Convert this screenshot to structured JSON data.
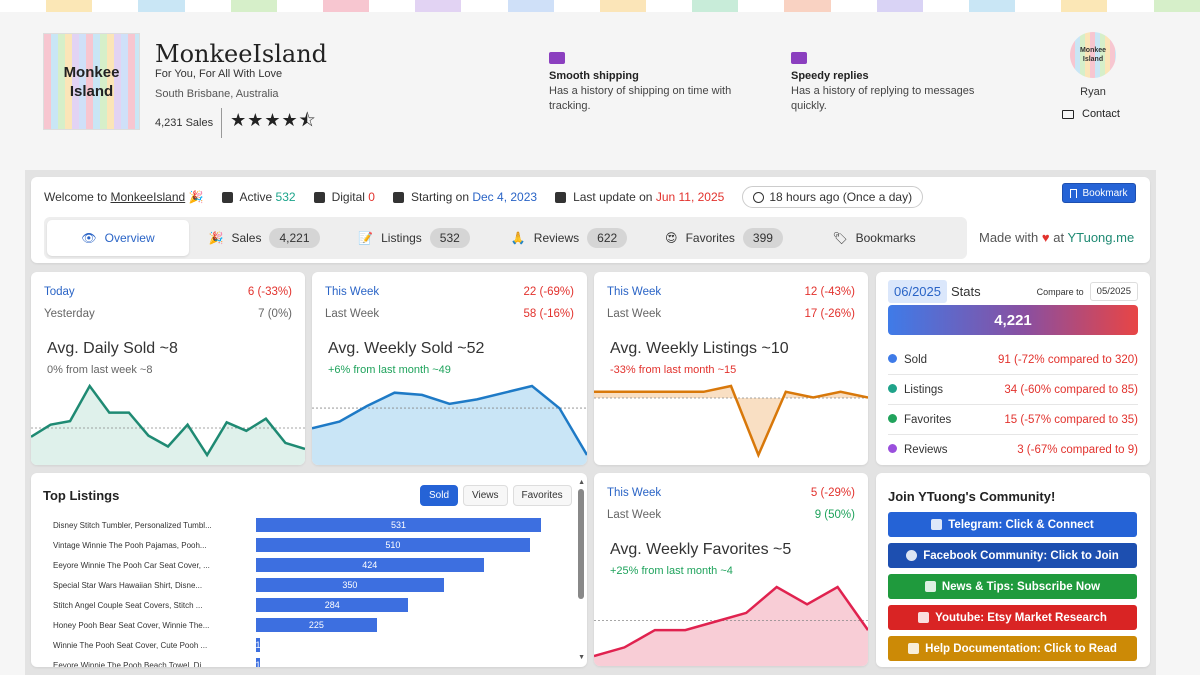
{
  "header": {
    "stripe_colors": [
      "#fbe7b6",
      "#c9e6f5",
      "#d6efc9",
      "#f7c6d0",
      "#e2d3f3",
      "#cfe0f8",
      "#fbe5b8",
      "#c8ecd9",
      "#f9d2c2",
      "#d9d3f5",
      "#c9e6f5",
      "#fbe7b6",
      "#d6efc9"
    ],
    "logo_line1": "Monkee",
    "logo_line2": "Island",
    "shop_name": "MonkeeIsland",
    "tagline": "For You, For All With Love",
    "location": "South Brisbane, Australia",
    "sales": "4,231 Sales",
    "rating": 4.5,
    "stars": "★★★★⯪",
    "features": [
      {
        "title": "Smooth shipping",
        "desc": "Has a history of shipping on time with tracking.",
        "icon": "truck-icon"
      },
      {
        "title": "Speedy replies",
        "desc": "Has a history of replying to messages quickly.",
        "icon": "envelope-icon"
      }
    ],
    "avatar_line1": "Monkee",
    "avatar_line2": "Island",
    "owner": "Ryan",
    "contact": "Contact"
  },
  "welcome": {
    "prefix": "Welcome to",
    "shop_link": "MonkeeIsland",
    "active_label": "Active",
    "active_value": "532",
    "digital_label": "Digital",
    "digital_value": "0",
    "starting_label": "Starting on",
    "starting_value": "Dec 4, 2023",
    "update_label": "Last update on",
    "update_value": "Jun 11, 2025",
    "refresh": "18 hours ago (Once a day)",
    "bookmark_btn": "Bookmark"
  },
  "tabs": [
    {
      "label": "Overview",
      "count": ""
    },
    {
      "label": "Sales",
      "count": "4,221"
    },
    {
      "label": "Listings",
      "count": "532"
    },
    {
      "label": "Reviews",
      "count": "622"
    },
    {
      "label": "Favorites",
      "count": "399"
    },
    {
      "label": "Bookmarks",
      "count": ""
    }
  ],
  "made_with": {
    "prefix": "Made with",
    "heart": "♥",
    "at": "at",
    "brand": "YTuong.me"
  },
  "cards": [
    {
      "p1_label": "Today",
      "p1_value": "6 (-33%)",
      "p2_label": "Yesterday",
      "p2_value": "7 (0%)",
      "title": "Avg. Daily Sold ~8",
      "subtitle": "0% from last week ~8",
      "color": "#1f8a73",
      "fill": "#d9efe8",
      "series": [
        5,
        6,
        6.3,
        9.2,
        7,
        7,
        5.1,
        4.2,
        6,
        3.5,
        6.2,
        5.5,
        6.5,
        4.5,
        4
      ]
    },
    {
      "p1_label": "This Week",
      "p1_value": "22 (-69%)",
      "p2_label": "Last Week",
      "p2_value": "58 (-16%)",
      "title": "Avg. Weekly Sold ~52",
      "subtitle": "+6% from last month ~49",
      "color": "#1e7ac6",
      "fill": "#bfe0f5",
      "series": [
        47,
        50,
        57,
        63,
        62,
        58,
        60,
        63,
        66,
        56,
        35
      ]
    },
    {
      "p1_label": "This Week",
      "p1_value": "12 (-43%)",
      "p2_label": "Last Week",
      "p2_value": "17 (-26%)",
      "title": "Avg. Weekly Listings ~10",
      "subtitle": "-33% from last month ~15",
      "color": "#d8780a",
      "fill": "#f8d9b9",
      "series": [
        12,
        12,
        12,
        12,
        12,
        13,
        1,
        12,
        11,
        12,
        11
      ]
    },
    {
      "p1_label": "This Week",
      "p1_value": "5 (-29%)",
      "p2_label": "Last Week",
      "p2_value": "9 (50%)",
      "title": "Avg. Weekly Favorites ~5",
      "subtitle": "+25% from last month ~4",
      "color": "#e0224f",
      "fill": "#f7c4cf",
      "series": [
        1,
        2,
        4,
        4,
        5,
        6,
        9,
        7,
        9,
        4
      ]
    }
  ],
  "stats": {
    "month": "06/2025",
    "label": "Stats",
    "compare_label": "Compare to",
    "compare_month": "05/2025",
    "total": "4,221",
    "rows": [
      {
        "name": "Sold",
        "value": "91 (-72% compared to 320)",
        "color": "#3f7be8"
      },
      {
        "name": "Listings",
        "value": "34 (-60% compared to 85)",
        "color": "#1fa38a"
      },
      {
        "name": "Favorites",
        "value": "15 (-57% compared to 35)",
        "color": "#21a35c"
      },
      {
        "name": "Reviews",
        "value": "3 (-67% compared to 9)",
        "color": "#9a4fdd"
      }
    ]
  },
  "top_listings": {
    "title": "Top Listings",
    "buttons": [
      "Sold",
      "Views",
      "Favorites"
    ],
    "items": [
      {
        "name": "Disney Stitch Tumbler, Personalized Tumbl...",
        "value": 531
      },
      {
        "name": "Vintage Winnie The Pooh Pajamas, Pooh...",
        "value": 510
      },
      {
        "name": "Eeyore Winnie The Pooh Car Seat Cover, ...",
        "value": 424
      },
      {
        "name": "Special Star Wars Hawaiian Shirt, Disne...",
        "value": 350
      },
      {
        "name": "Stitch Angel Couple Seat Covers, Stitch ...",
        "value": 284
      },
      {
        "name": "Honey Pooh Bear Seat Cover, Winnie The...",
        "value": 225
      },
      {
        "name": "Winnie The Pooh Seat Cover, Cute Pooh ...",
        "value": 1
      },
      {
        "name": "Eeyore Winnie The Pooh Beach Towel, Di...",
        "value": 1
      }
    ]
  },
  "community": {
    "title": "Join YTuong's Community!",
    "buttons": [
      {
        "label": "Telegram: Click & Connect",
        "color": "#2563d6",
        "icon": "telegram-icon"
      },
      {
        "label": "Facebook Community: Click to Join",
        "color": "#1d4fb0",
        "icon": "globe-icon"
      },
      {
        "label": "News & Tips: Subscribe Now",
        "color": "#1f9a3d",
        "icon": "pen-icon"
      },
      {
        "label": "Youtube: Etsy Market Research",
        "color": "#d92424",
        "icon": "play-icon"
      },
      {
        "label": "Help Documentation: Click to Read",
        "color": "#cc8a06",
        "icon": "book-icon"
      }
    ]
  }
}
